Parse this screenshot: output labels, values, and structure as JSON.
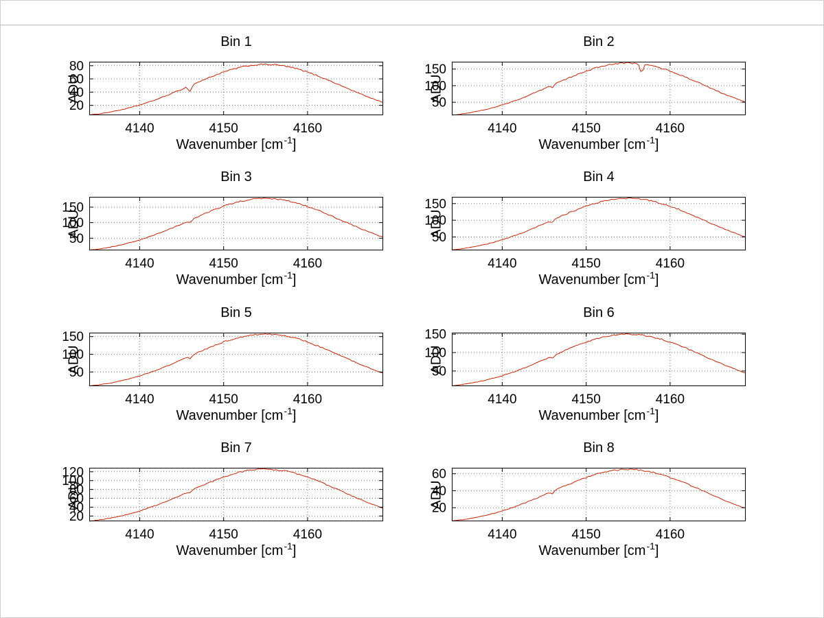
{
  "figure": {
    "background": "#ffffff",
    "frame_color": "#cfcfcf",
    "grid_color": "#7a7a7a",
    "axis_color": "#000000"
  },
  "labels": {
    "ylabel": "ADU",
    "xlabel_pre": "Wavenumber [cm",
    "xlabel_sup": "-1",
    "xlabel_post": "]"
  },
  "chart_data": [
    {
      "type": "line",
      "title": "Bin 1",
      "xlabel": "Wavenumber [cm⁻¹]",
      "ylabel": "ADU",
      "x_start": 4134,
      "x_step": 1,
      "xlim": [
        4134,
        4169
      ],
      "ylim": [
        5,
        86
      ],
      "xticks": [
        4140,
        4150,
        4160
      ],
      "yticks": [
        20,
        40,
        60,
        80
      ],
      "line_color": "#cc2200",
      "noise": 1.1,
      "dips": [
        {
          "x": 4146,
          "depth": 9
        }
      ],
      "y": [
        5.4,
        6.9,
        8.8,
        11.1,
        13.8,
        16.9,
        20.5,
        24.5,
        28.9,
        33.7,
        38.9,
        44.2,
        49.7,
        55.2,
        60.6,
        65.7,
        70.3,
        74.3,
        77.6,
        80.0,
        81.5,
        82.0,
        81.5,
        80.0,
        77.6,
        74.3,
        70.3,
        65.7,
        60.6,
        55.2,
        49.7,
        44.2,
        38.9,
        33.7,
        28.9,
        24.5
      ]
    },
    {
      "type": "line",
      "title": "Bin 2",
      "xlabel": "Wavenumber [cm⁻¹]",
      "ylabel": "ADU",
      "x_start": 4134,
      "x_step": 1,
      "xlim": [
        4134,
        4169
      ],
      "ylim": [
        11,
        172
      ],
      "xticks": [
        4140,
        4150,
        4160
      ],
      "yticks": [
        50,
        100,
        150
      ],
      "line_color": "#cc2200",
      "noise": 2.2,
      "dips": [
        {
          "x": 4146,
          "depth": 7
        },
        {
          "x": 4156.6,
          "depth": 30
        }
      ],
      "y": [
        11.0,
        14.2,
        18.1,
        22.7,
        28.2,
        34.6,
        41.9,
        50.1,
        59.2,
        69.1,
        79.6,
        90.6,
        101.9,
        113.2,
        124.2,
        134.5,
        144.0,
        152.2,
        158.9,
        163.9,
        167.0,
        168.0,
        167.0,
        163.9,
        158.9,
        152.2,
        144.0,
        134.5,
        124.2,
        113.2,
        101.9,
        90.6,
        79.6,
        69.1,
        59.2,
        50.1
      ]
    },
    {
      "type": "line",
      "title": "Bin 3",
      "xlabel": "Wavenumber [cm⁻¹]",
      "ylabel": "ADU",
      "x_start": 4134,
      "x_step": 1,
      "xlim": [
        4134,
        4169
      ],
      "ylim": [
        11,
        183
      ],
      "xticks": [
        4140,
        4150,
        4160
      ],
      "yticks": [
        50,
        100,
        150
      ],
      "line_color": "#cc2200",
      "noise": 2.4,
      "dips": [
        {
          "x": 4146,
          "depth": 8
        }
      ],
      "y": [
        11.7,
        15.1,
        19.2,
        24.1,
        29.9,
        36.7,
        44.4,
        53.1,
        62.7,
        73.2,
        84.3,
        96.0,
        108.0,
        119.9,
        131.5,
        142.5,
        152.6,
        161.3,
        168.4,
        173.7,
        176.9,
        178.0,
        176.9,
        173.7,
        168.4,
        161.3,
        152.6,
        142.5,
        131.5,
        119.9,
        108.0,
        96.0,
        84.3,
        73.2,
        62.7,
        53.1
      ]
    },
    {
      "type": "line",
      "title": "Bin 4",
      "xlabel": "Wavenumber [cm⁻¹]",
      "ylabel": "ADU",
      "x_start": 4134,
      "x_step": 1,
      "xlim": [
        4134,
        4169
      ],
      "ylim": [
        10,
        170
      ],
      "xticks": [
        4140,
        4150,
        4160
      ],
      "yticks": [
        50,
        100,
        150
      ],
      "line_color": "#cc2200",
      "noise": 2.2,
      "dips": [
        {
          "x": 4146,
          "depth": 7
        }
      ],
      "y": [
        10.9,
        14.1,
        17.9,
        22.5,
        27.9,
        34.2,
        41.4,
        49.5,
        58.5,
        68.2,
        78.7,
        89.5,
        100.7,
        111.8,
        122.7,
        132.9,
        142.3,
        150.4,
        157.0,
        162.0,
        165.0,
        166.0,
        165.0,
        162.0,
        157.0,
        150.4,
        142.3,
        132.9,
        122.7,
        111.8,
        100.7,
        89.5,
        78.7,
        68.2,
        58.5,
        49.5
      ]
    },
    {
      "type": "line",
      "title": "Bin 5",
      "xlabel": "Wavenumber [cm⁻¹]",
      "ylabel": "ADU",
      "x_start": 4134,
      "x_step": 1,
      "xlim": [
        4134,
        4169
      ],
      "ylim": [
        10,
        161
      ],
      "xticks": [
        4140,
        4150,
        4160
      ],
      "yticks": [
        50,
        100,
        150
      ],
      "line_color": "#cc2200",
      "noise": 2.0,
      "dips": [
        {
          "x": 4146,
          "depth": 7
        }
      ],
      "y": [
        10.3,
        13.3,
        16.9,
        21.2,
        26.4,
        32.3,
        39.2,
        46.8,
        55.3,
        64.5,
        74.4,
        84.7,
        95.2,
        105.8,
        116.0,
        125.7,
        134.6,
        142.3,
        148.5,
        153.2,
        156.0,
        157.0,
        156.0,
        153.2,
        148.5,
        142.3,
        134.6,
        125.7,
        116.0,
        105.8,
        95.2,
        84.7,
        74.4,
        64.5,
        55.3,
        46.8
      ]
    },
    {
      "type": "line",
      "title": "Bin 6",
      "xlabel": "Wavenumber [cm⁻¹]",
      "ylabel": "ADU",
      "x_start": 4134,
      "x_step": 1,
      "xlim": [
        4134,
        4169
      ],
      "ylim": [
        9,
        154
      ],
      "xticks": [
        4140,
        4150,
        4160
      ],
      "yticks": [
        50,
        100,
        150
      ],
      "line_color": "#cc2200",
      "noise": 1.9,
      "dips": [
        {
          "x": 4146,
          "depth": 6
        }
      ],
      "y": [
        9.9,
        12.7,
        16.2,
        20.3,
        25.2,
        30.9,
        37.4,
        44.7,
        52.8,
        61.7,
        71.1,
        80.9,
        91.0,
        101.0,
        110.9,
        120.1,
        128.6,
        135.9,
        141.9,
        146.3,
        149.1,
        150.0,
        149.1,
        146.3,
        141.9,
        135.9,
        128.6,
        120.1,
        110.9,
        101.0,
        91.0,
        80.9,
        71.1,
        61.7,
        52.8,
        44.7
      ]
    },
    {
      "type": "line",
      "title": "Bin 7",
      "xlabel": "Wavenumber [cm⁻¹]",
      "ylabel": "ADU",
      "x_start": 4134,
      "x_step": 1,
      "xlim": [
        4134,
        4169
      ],
      "ylim": [
        8,
        129
      ],
      "xticks": [
        4140,
        4150,
        4160
      ],
      "yticks": [
        20,
        40,
        60,
        80,
        100,
        120
      ],
      "line_color": "#cc2200",
      "noise": 1.6,
      "dips": [
        {
          "x": 4146,
          "depth": 5
        }
      ],
      "y": [
        8.3,
        10.7,
        13.6,
        17.0,
        21.2,
        25.9,
        31.4,
        37.6,
        44.4,
        51.8,
        59.7,
        68.0,
        76.4,
        84.9,
        93.1,
        100.9,
        108.0,
        114.2,
        119.2,
        122.9,
        125.2,
        126.0,
        125.2,
        122.9,
        119.2,
        114.2,
        108.0,
        100.9,
        93.1,
        84.9,
        76.4,
        68.0,
        59.7,
        51.8,
        44.4,
        37.6
      ]
    },
    {
      "type": "line",
      "title": "Bin 8",
      "xlabel": "Wavenumber [cm⁻¹]",
      "ylabel": "ADU",
      "x_start": 4134,
      "x_step": 1,
      "xlim": [
        4134,
        4169
      ],
      "ylim": [
        4,
        67
      ],
      "xticks": [
        4140,
        4150,
        4160
      ],
      "yticks": [
        20,
        40,
        60
      ],
      "line_color": "#cc2200",
      "noise": 0.9,
      "dips": [
        {
          "x": 4146,
          "depth": 3
        }
      ],
      "y": [
        4.3,
        5.5,
        7.0,
        8.8,
        10.9,
        13.4,
        16.2,
        19.4,
        22.9,
        26.7,
        30.8,
        35.1,
        39.4,
        43.8,
        48.0,
        52.0,
        55.7,
        58.9,
        61.5,
        63.4,
        64.6,
        65.0,
        64.6,
        63.4,
        61.5,
        58.9,
        55.7,
        52.0,
        48.0,
        43.8,
        39.4,
        35.1,
        30.8,
        26.7,
        22.9,
        19.4
      ]
    }
  ]
}
